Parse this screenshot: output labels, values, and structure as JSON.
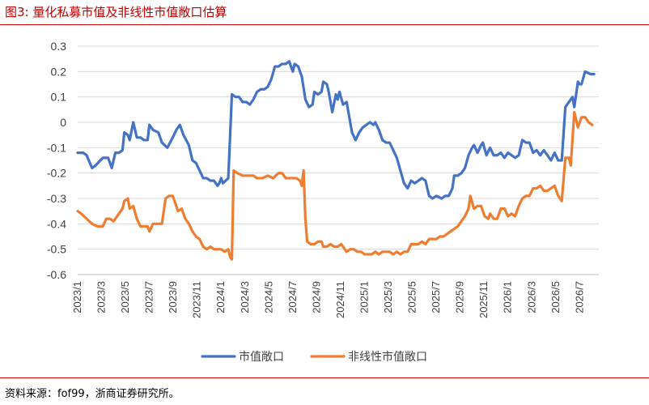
{
  "header": {
    "title": "图3:   量化私募市值及非线性市值敞口估算"
  },
  "footer": {
    "source": "资料来源：fof99，浙商证券研究所。"
  },
  "colors": {
    "accent": "#c00000",
    "series_1": "#4472c4",
    "series_2": "#ed7d31",
    "gridline": "#d9d9d9"
  },
  "chart_data": {
    "type": "line",
    "title": "",
    "xlabel": "",
    "ylabel": "",
    "ylim": [
      -0.6,
      0.3
    ],
    "yticks": [
      "0.3",
      "0.2",
      "0.1",
      "0",
      "-0.1",
      "-0.2",
      "-0.3",
      "-0.4",
      "-0.5",
      "-0.6"
    ],
    "xlim": [
      0,
      43.6
    ],
    "x_tick_labels": [
      "2023/1",
      "2023/3",
      "2023/5",
      "2023/7",
      "2023/9",
      "2023/11",
      "2024/1",
      "2024/3",
      "2024/5",
      "2024/7",
      "2024/9",
      "2024/11",
      "2025/1",
      "2025/3",
      "2025/5",
      "2025/7",
      "2025/9",
      "2025/11",
      "2026/1",
      "2026/3",
      "2026/5",
      "2026/7"
    ],
    "x_tick_months_since_2023_1": [
      0,
      2,
      4,
      6,
      8,
      10,
      12,
      14,
      16,
      18,
      20,
      22,
      24,
      26,
      28,
      30,
      32,
      34,
      36,
      38,
      40,
      42
    ],
    "grid": "horizontal",
    "legend": "bottom",
    "series": [
      {
        "name": "市值敞口",
        "color": "#4472c4",
        "points": [
          [
            0.0,
            -0.12
          ],
          [
            0.3,
            -0.12
          ],
          [
            0.5,
            -0.13
          ],
          [
            0.8,
            -0.18
          ],
          [
            1.0,
            -0.17
          ],
          [
            1.4,
            -0.14
          ],
          [
            1.7,
            -0.14
          ],
          [
            1.9,
            -0.18
          ],
          [
            2.1,
            -0.12
          ],
          [
            2.3,
            -0.12
          ],
          [
            2.5,
            -0.11
          ],
          [
            2.6,
            -0.04
          ],
          [
            2.8,
            -0.05
          ],
          [
            2.9,
            -0.07
          ],
          [
            3.1,
            0.0
          ],
          [
            3.3,
            -0.06
          ],
          [
            3.5,
            -0.06
          ],
          [
            3.7,
            -0.07
          ],
          [
            3.9,
            -0.07
          ],
          [
            4.0,
            -0.01
          ],
          [
            4.2,
            -0.03
          ],
          [
            4.5,
            -0.04
          ],
          [
            4.7,
            -0.08
          ],
          [
            5.0,
            -0.1
          ],
          [
            5.3,
            -0.06
          ],
          [
            5.5,
            -0.03
          ],
          [
            5.7,
            -0.01
          ],
          [
            5.9,
            -0.05
          ],
          [
            6.2,
            -0.09
          ],
          [
            6.4,
            -0.15
          ],
          [
            6.6,
            -0.16
          ],
          [
            6.8,
            -0.19
          ],
          [
            7.0,
            -0.22
          ],
          [
            7.2,
            -0.22
          ],
          [
            7.4,
            -0.23
          ],
          [
            7.6,
            -0.23
          ],
          [
            7.8,
            -0.25
          ],
          [
            7.9,
            -0.24
          ],
          [
            8.0,
            -0.22
          ],
          [
            8.1,
            -0.24
          ],
          [
            8.4,
            -0.22
          ],
          [
            8.6,
            0.11
          ],
          [
            8.8,
            0.1
          ],
          [
            9.0,
            0.1
          ],
          [
            9.2,
            0.08
          ],
          [
            9.4,
            0.08
          ],
          [
            9.6,
            0.07
          ],
          [
            9.8,
            0.09
          ],
          [
            10.0,
            0.12
          ],
          [
            10.2,
            0.13
          ],
          [
            10.4,
            0.13
          ],
          [
            10.6,
            0.14
          ],
          [
            10.8,
            0.17
          ],
          [
            11.0,
            0.22
          ],
          [
            11.2,
            0.22
          ],
          [
            11.4,
            0.23
          ],
          [
            11.6,
            0.23
          ],
          [
            11.8,
            0.24
          ],
          [
            12.0,
            0.2
          ],
          [
            12.1,
            0.23
          ],
          [
            12.3,
            0.22
          ],
          [
            12.5,
            0.18
          ],
          [
            12.7,
            0.09
          ],
          [
            12.9,
            0.06
          ],
          [
            13.1,
            0.07
          ],
          [
            13.2,
            0.12
          ],
          [
            13.4,
            0.11
          ],
          [
            13.6,
            0.12
          ],
          [
            13.7,
            0.16
          ],
          [
            13.9,
            0.15
          ],
          [
            14.0,
            0.12
          ],
          [
            14.2,
            0.04
          ],
          [
            14.4,
            0.11
          ],
          [
            14.5,
            0.09
          ],
          [
            14.6,
            0.12
          ],
          [
            14.8,
            0.07
          ],
          [
            15.0,
            0.08
          ],
          [
            15.1,
            0.04
          ],
          [
            15.3,
            -0.04
          ],
          [
            15.5,
            -0.07
          ],
          [
            15.7,
            -0.04
          ],
          [
            15.9,
            -0.02
          ],
          [
            16.1,
            -0.01
          ],
          [
            16.3,
            0.0
          ],
          [
            16.5,
            -0.01
          ],
          [
            16.6,
            0.0
          ],
          [
            16.8,
            -0.03
          ],
          [
            17.0,
            -0.07
          ],
          [
            17.2,
            -0.08
          ],
          [
            17.4,
            -0.08
          ],
          [
            17.6,
            -0.11
          ],
          [
            17.8,
            -0.14
          ],
          [
            18.0,
            -0.19
          ],
          [
            18.2,
            -0.24
          ],
          [
            18.4,
            -0.26
          ],
          [
            18.6,
            -0.23
          ],
          [
            18.8,
            -0.24
          ],
          [
            19.0,
            -0.23
          ],
          [
            19.2,
            -0.22
          ],
          [
            19.4,
            -0.23
          ],
          [
            19.6,
            -0.29
          ],
          [
            19.8,
            -0.3
          ],
          [
            20.0,
            -0.29
          ],
          [
            20.3,
            -0.3
          ],
          [
            20.5,
            -0.29
          ],
          [
            20.7,
            -0.29
          ],
          [
            20.9,
            -0.26
          ],
          [
            21.0,
            -0.21
          ],
          [
            21.2,
            -0.21
          ],
          [
            21.4,
            -0.2
          ],
          [
            21.6,
            -0.18
          ],
          [
            21.8,
            -0.13
          ],
          [
            22.0,
            -0.1
          ],
          [
            22.1,
            -0.09
          ],
          [
            22.3,
            -0.12
          ],
          [
            22.5,
            -0.09
          ],
          [
            22.6,
            -0.08
          ],
          [
            22.8,
            -0.13
          ],
          [
            23.0,
            -0.1
          ],
          [
            23.2,
            -0.13
          ],
          [
            23.4,
            -0.13
          ],
          [
            23.6,
            -0.12
          ],
          [
            23.8,
            -0.14
          ],
          [
            24.0,
            -0.12
          ],
          [
            24.2,
            -0.13
          ],
          [
            24.4,
            -0.14
          ],
          [
            24.6,
            -0.13
          ],
          [
            24.8,
            -0.07
          ],
          [
            25.0,
            -0.08
          ],
          [
            25.2,
            -0.08
          ],
          [
            25.4,
            -0.12
          ],
          [
            25.6,
            -0.11
          ],
          [
            25.8,
            -0.13
          ],
          [
            26.0,
            -0.11
          ],
          [
            26.2,
            -0.13
          ],
          [
            26.4,
            -0.15
          ],
          [
            26.6,
            -0.12
          ],
          [
            26.8,
            -0.15
          ],
          [
            27.0,
            -0.15
          ],
          [
            27.2,
            0.06
          ],
          [
            27.4,
            0.08
          ],
          [
            27.6,
            0.1
          ],
          [
            27.7,
            0.06
          ],
          [
            27.9,
            0.16
          ],
          [
            28.0,
            0.15
          ],
          [
            28.1,
            0.15
          ],
          [
            28.3,
            0.2
          ],
          [
            28.6,
            0.19
          ],
          [
            28.8,
            0.19
          ]
        ]
      },
      {
        "name": "非线性市值敞口",
        "color": "#ed7d31",
        "points": [
          [
            0.0,
            -0.35
          ],
          [
            0.2,
            -0.36
          ],
          [
            0.5,
            -0.38
          ],
          [
            0.8,
            -0.4
          ],
          [
            1.1,
            -0.41
          ],
          [
            1.4,
            -0.41
          ],
          [
            1.6,
            -0.38
          ],
          [
            1.8,
            -0.38
          ],
          [
            2.0,
            -0.39
          ],
          [
            2.2,
            -0.37
          ],
          [
            2.5,
            -0.34
          ],
          [
            2.6,
            -0.31
          ],
          [
            2.8,
            -0.3
          ],
          [
            2.9,
            -0.34
          ],
          [
            3.1,
            -0.33
          ],
          [
            3.3,
            -0.38
          ],
          [
            3.5,
            -0.41
          ],
          [
            3.7,
            -0.41
          ],
          [
            3.9,
            -0.41
          ],
          [
            4.0,
            -0.43
          ],
          [
            4.2,
            -0.4
          ],
          [
            4.5,
            -0.4
          ],
          [
            4.7,
            -0.4
          ],
          [
            4.9,
            -0.3
          ],
          [
            5.1,
            -0.29
          ],
          [
            5.3,
            -0.29
          ],
          [
            5.5,
            -0.33
          ],
          [
            5.6,
            -0.35
          ],
          [
            5.8,
            -0.34
          ],
          [
            6.0,
            -0.38
          ],
          [
            6.2,
            -0.4
          ],
          [
            6.4,
            -0.43
          ],
          [
            6.6,
            -0.45
          ],
          [
            6.8,
            -0.46
          ],
          [
            7.0,
            -0.49
          ],
          [
            7.2,
            -0.5
          ],
          [
            7.4,
            -0.49
          ],
          [
            7.6,
            -0.5
          ],
          [
            8.0,
            -0.5
          ],
          [
            8.2,
            -0.51
          ],
          [
            8.4,
            -0.5
          ],
          [
            8.5,
            -0.53
          ],
          [
            8.6,
            -0.54
          ],
          [
            8.7,
            -0.19
          ],
          [
            8.9,
            -0.2
          ],
          [
            9.2,
            -0.21
          ],
          [
            9.5,
            -0.21
          ],
          [
            9.8,
            -0.21
          ],
          [
            10.0,
            -0.22
          ],
          [
            10.3,
            -0.22
          ],
          [
            10.6,
            -0.21
          ],
          [
            10.9,
            -0.22
          ],
          [
            11.2,
            -0.2
          ],
          [
            11.4,
            -0.2
          ],
          [
            11.6,
            -0.22
          ],
          [
            11.8,
            -0.22
          ],
          [
            12.0,
            -0.22
          ],
          [
            12.2,
            -0.22
          ],
          [
            12.4,
            -0.23
          ],
          [
            12.5,
            -0.25
          ],
          [
            12.6,
            -0.19
          ],
          [
            12.7,
            -0.38
          ],
          [
            12.8,
            -0.47
          ],
          [
            13.0,
            -0.48
          ],
          [
            13.2,
            -0.48
          ],
          [
            13.4,
            -0.47
          ],
          [
            13.6,
            -0.47
          ],
          [
            13.7,
            -0.49
          ],
          [
            13.9,
            -0.49
          ],
          [
            14.1,
            -0.48
          ],
          [
            14.3,
            -0.49
          ],
          [
            14.5,
            -0.49
          ],
          [
            14.7,
            -0.48
          ],
          [
            14.9,
            -0.5
          ],
          [
            15.0,
            -0.51
          ],
          [
            15.2,
            -0.5
          ],
          [
            15.4,
            -0.5
          ],
          [
            15.6,
            -0.51
          ],
          [
            15.8,
            -0.51
          ],
          [
            16.0,
            -0.52
          ],
          [
            16.2,
            -0.52
          ],
          [
            16.4,
            -0.52
          ],
          [
            16.6,
            -0.51
          ],
          [
            16.8,
            -0.52
          ],
          [
            17.0,
            -0.51
          ],
          [
            17.2,
            -0.51
          ],
          [
            17.4,
            -0.51
          ],
          [
            17.6,
            -0.52
          ],
          [
            17.8,
            -0.51
          ],
          [
            18.0,
            -0.52
          ],
          [
            18.2,
            -0.51
          ],
          [
            18.4,
            -0.51
          ],
          [
            18.6,
            -0.48
          ],
          [
            18.8,
            -0.48
          ],
          [
            19.0,
            -0.48
          ],
          [
            19.2,
            -0.47
          ],
          [
            19.4,
            -0.48
          ],
          [
            19.6,
            -0.46
          ],
          [
            19.8,
            -0.46
          ],
          [
            20.0,
            -0.46
          ],
          [
            20.2,
            -0.45
          ],
          [
            20.4,
            -0.45
          ],
          [
            20.6,
            -0.44
          ],
          [
            20.8,
            -0.43
          ],
          [
            21.0,
            -0.42
          ],
          [
            21.2,
            -0.41
          ],
          [
            21.4,
            -0.39
          ],
          [
            21.6,
            -0.37
          ],
          [
            21.8,
            -0.34
          ],
          [
            21.9,
            -0.29
          ],
          [
            22.1,
            -0.34
          ],
          [
            22.3,
            -0.33
          ],
          [
            22.5,
            -0.33
          ],
          [
            22.7,
            -0.37
          ],
          [
            22.9,
            -0.38
          ],
          [
            23.0,
            -0.36
          ],
          [
            23.2,
            -0.38
          ],
          [
            23.4,
            -0.38
          ],
          [
            23.6,
            -0.34
          ],
          [
            23.8,
            -0.34
          ],
          [
            24.0,
            -0.37
          ],
          [
            24.2,
            -0.36
          ],
          [
            24.4,
            -0.37
          ],
          [
            24.6,
            -0.33
          ],
          [
            24.8,
            -0.3
          ],
          [
            25.0,
            -0.29
          ],
          [
            25.2,
            -0.29
          ],
          [
            25.4,
            -0.26
          ],
          [
            25.6,
            -0.26
          ],
          [
            25.8,
            -0.25
          ],
          [
            26.0,
            -0.27
          ],
          [
            26.2,
            -0.27
          ],
          [
            26.4,
            -0.26
          ],
          [
            26.6,
            -0.25
          ],
          [
            26.8,
            -0.29
          ],
          [
            27.0,
            -0.31
          ],
          [
            27.2,
            -0.14
          ],
          [
            27.4,
            -0.14
          ],
          [
            27.5,
            -0.17
          ],
          [
            27.7,
            0.04
          ],
          [
            27.9,
            -0.02
          ],
          [
            28.1,
            0.02
          ],
          [
            28.3,
            0.02
          ],
          [
            28.5,
            0.0
          ],
          [
            28.7,
            -0.01
          ]
        ]
      }
    ]
  }
}
